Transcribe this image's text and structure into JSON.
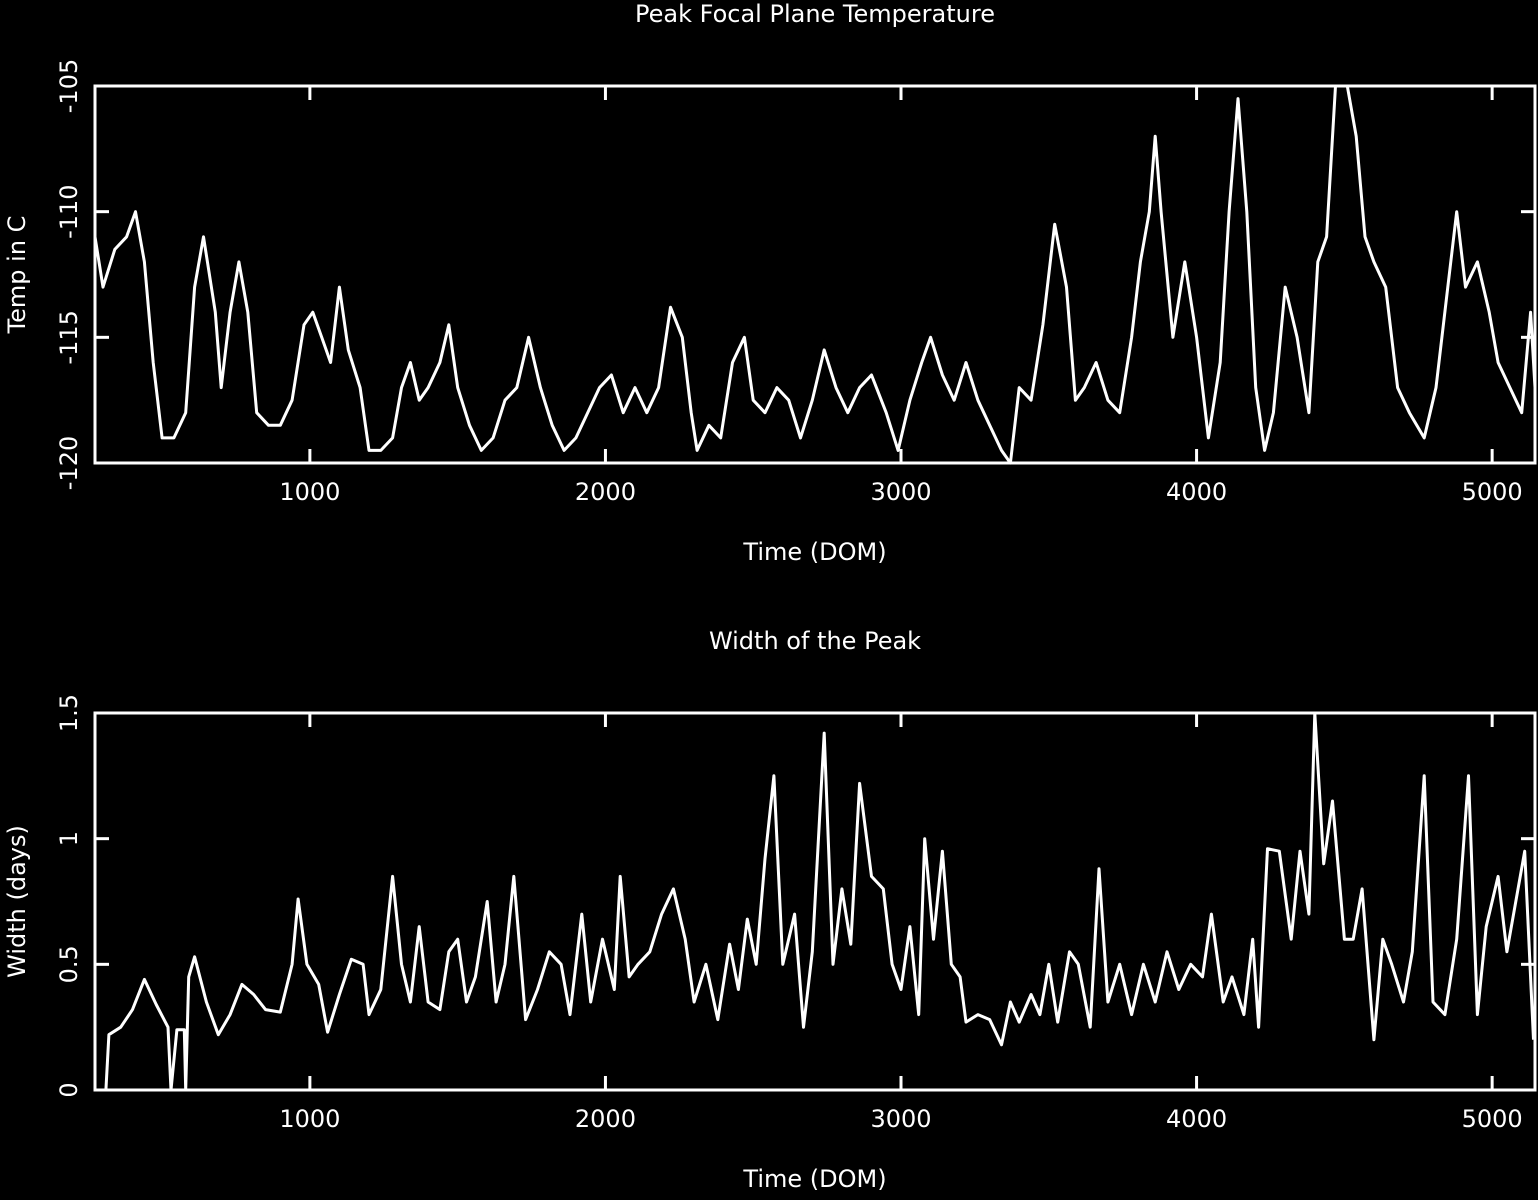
{
  "chart_data": [
    {
      "type": "line",
      "title": "Peak Focal Plane Temperature",
      "xlabel": "Time (DOM)",
      "ylabel": "Temp in C",
      "color": "#ffffff",
      "xlim": [
        273,
        5145
      ],
      "xticks": [
        1000,
        2000,
        3000,
        4000,
        5000
      ],
      "ylim": [
        -120,
        -105
      ],
      "yticks": [
        -120,
        -115,
        -110,
        -105
      ],
      "x": [
        273,
        300,
        340,
        380,
        410,
        440,
        470,
        500,
        540,
        580,
        610,
        640,
        680,
        700,
        730,
        760,
        790,
        820,
        860,
        900,
        940,
        980,
        1010,
        1040,
        1070,
        1100,
        1130,
        1170,
        1200,
        1240,
        1280,
        1310,
        1340,
        1370,
        1400,
        1440,
        1470,
        1500,
        1540,
        1580,
        1620,
        1660,
        1700,
        1740,
        1780,
        1820,
        1860,
        1900,
        1940,
        1980,
        2020,
        2060,
        2100,
        2140,
        2180,
        2220,
        2260,
        2290,
        2310,
        2350,
        2390,
        2430,
        2470,
        2500,
        2540,
        2580,
        2620,
        2660,
        2700,
        2740,
        2780,
        2820,
        2860,
        2900,
        2950,
        2990,
        3030,
        3070,
        3100,
        3140,
        3180,
        3220,
        3260,
        3300,
        3340,
        3370,
        3400,
        3440,
        3480,
        3520,
        3560,
        3590,
        3620,
        3660,
        3700,
        3740,
        3780,
        3810,
        3840,
        3860,
        3880,
        3920,
        3960,
        4000,
        4040,
        4080,
        4110,
        4140,
        4170,
        4200,
        4230,
        4260,
        4300,
        4340,
        4380,
        4410,
        4440,
        4470,
        4510,
        4540,
        4570,
        4600,
        4640,
        4680,
        4720,
        4770,
        4810,
        4850,
        4880,
        4910,
        4950,
        4990,
        5020,
        5060,
        5100,
        5130,
        5145
      ],
      "values": [
        -111,
        -113,
        -111.5,
        -111,
        -110,
        -112,
        -116,
        -119,
        -119,
        -118,
        -113,
        -111,
        -114,
        -117,
        -114,
        -112,
        -114,
        -118,
        -118.5,
        -118.5,
        -117.5,
        -114.5,
        -114,
        -115,
        -116,
        -113,
        -115.5,
        -117,
        -119.5,
        -119.5,
        -119,
        -117,
        -116,
        -117.5,
        -117,
        -116,
        -114.5,
        -117,
        -118.5,
        -119.5,
        -119,
        -117.5,
        -117,
        -115,
        -117,
        -118.5,
        -119.5,
        -119,
        -118,
        -117,
        -116.5,
        -118,
        -117,
        -118,
        -117,
        -113.8,
        -115,
        -118,
        -119.5,
        -118.5,
        -119,
        -116,
        -115,
        -117.5,
        -118,
        -117,
        -117.5,
        -119,
        -117.5,
        -115.5,
        -117,
        -118,
        -117,
        -116.5,
        -118,
        -119.5,
        -117.5,
        -116,
        -115,
        -116.5,
        -117.5,
        -116,
        -117.5,
        -118.5,
        -119.5,
        -120,
        -117,
        -117.5,
        -114.5,
        -110.5,
        -113,
        -117.5,
        -117,
        -116,
        -117.5,
        -118,
        -115,
        -112,
        -110,
        -107,
        -110,
        -115,
        -112,
        -115,
        -119,
        -116,
        -110,
        -105.5,
        -110,
        -117,
        -119.5,
        -118,
        -113,
        -115,
        -118,
        -112,
        -111,
        -105,
        -105,
        -107,
        -111,
        -112,
        -113,
        -117,
        -118,
        -119,
        -117,
        -113,
        -110,
        -113,
        -112,
        -114,
        -116,
        -117,
        -118,
        -114,
        -117
      ]
    },
    {
      "type": "line",
      "title": "Width of the Peak",
      "xlabel": "Time (DOM)",
      "ylabel": "Width (days)",
      "color": "#ffffff",
      "xlim": [
        273,
        5145
      ],
      "xticks": [
        1000,
        2000,
        3000,
        4000,
        5000
      ],
      "ylim": [
        0,
        1.5
      ],
      "yticks": [
        0,
        0.5,
        1,
        1.5
      ],
      "x": [
        310,
        320,
        360,
        400,
        440,
        480,
        520,
        530,
        550,
        575,
        580,
        590,
        610,
        650,
        690,
        730,
        770,
        810,
        850,
        900,
        940,
        960,
        990,
        1030,
        1060,
        1100,
        1140,
        1180,
        1200,
        1240,
        1280,
        1310,
        1340,
        1370,
        1400,
        1440,
        1470,
        1500,
        1530,
        1560,
        1600,
        1630,
        1660,
        1690,
        1730,
        1770,
        1810,
        1850,
        1880,
        1920,
        1950,
        1990,
        2030,
        2050,
        2080,
        2110,
        2150,
        2190,
        2230,
        2270,
        2300,
        2340,
        2380,
        2420,
        2450,
        2480,
        2510,
        2540,
        2570,
        2600,
        2640,
        2670,
        2700,
        2740,
        2770,
        2800,
        2830,
        2860,
        2900,
        2940,
        2970,
        3000,
        3030,
        3060,
        3080,
        3110,
        3140,
        3170,
        3200,
        3220,
        3260,
        3300,
        3340,
        3370,
        3400,
        3440,
        3470,
        3500,
        3530,
        3570,
        3600,
        3640,
        3670,
        3700,
        3740,
        3780,
        3820,
        3860,
        3900,
        3940,
        3980,
        4020,
        4050,
        4090,
        4120,
        4160,
        4190,
        4210,
        4240,
        4280,
        4320,
        4350,
        4380,
        4400,
        4430,
        4460,
        4500,
        4530,
        4560,
        4600,
        4630,
        4660,
        4700,
        4730,
        4770,
        4800,
        4840,
        4880,
        4920,
        4950,
        4980,
        5020,
        5050,
        5080,
        5110,
        5140
      ],
      "values": [
        0,
        0.22,
        0.25,
        0.32,
        0.44,
        0.34,
        0.25,
        0,
        0.24,
        0.24,
        0,
        0.45,
        0.53,
        0.35,
        0.22,
        0.3,
        0.42,
        0.38,
        0.32,
        0.31,
        0.5,
        0.76,
        0.5,
        0.42,
        0.23,
        0.38,
        0.52,
        0.5,
        0.3,
        0.4,
        0.85,
        0.5,
        0.35,
        0.65,
        0.35,
        0.32,
        0.55,
        0.6,
        0.35,
        0.45,
        0.75,
        0.35,
        0.5,
        0.85,
        0.28,
        0.4,
        0.55,
        0.5,
        0.3,
        0.7,
        0.35,
        0.6,
        0.4,
        0.85,
        0.45,
        0.5,
        0.55,
        0.7,
        0.8,
        0.6,
        0.35,
        0.5,
        0.28,
        0.58,
        0.4,
        0.68,
        0.5,
        0.92,
        1.25,
        0.5,
        0.7,
        0.25,
        0.55,
        1.42,
        0.5,
        0.8,
        0.58,
        1.22,
        0.85,
        0.8,
        0.5,
        0.4,
        0.65,
        0.3,
        1.0,
        0.6,
        0.95,
        0.5,
        0.45,
        0.27,
        0.3,
        0.28,
        0.18,
        0.35,
        0.27,
        0.38,
        0.3,
        0.5,
        0.27,
        0.55,
        0.5,
        0.25,
        0.88,
        0.35,
        0.5,
        0.3,
        0.5,
        0.35,
        0.55,
        0.4,
        0.5,
        0.45,
        0.7,
        0.35,
        0.45,
        0.3,
        0.6,
        0.25,
        0.96,
        0.95,
        0.6,
        0.95,
        0.7,
        1.5,
        0.9,
        1.15,
        0.6,
        0.6,
        0.8,
        0.2,
        0.6,
        0.5,
        0.35,
        0.55,
        1.25,
        0.35,
        0.3,
        0.6,
        1.25,
        0.3,
        0.65,
        0.85,
        0.55,
        0.75,
        0.95,
        0.2
      ]
    }
  ]
}
